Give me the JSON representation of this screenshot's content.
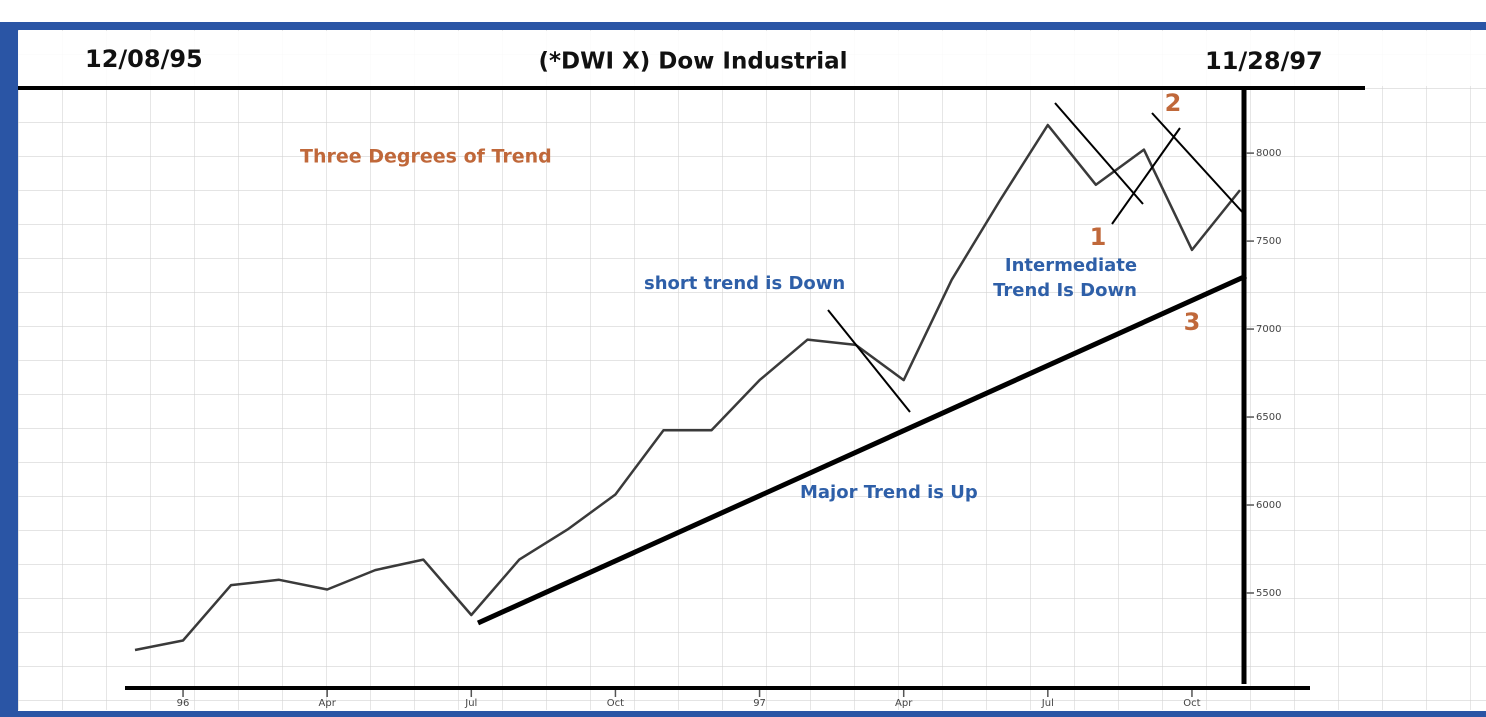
{
  "chart_data": {
    "type": "line",
    "title": "(*DWI X) Dow Industrial",
    "start_date": "12/08/95",
    "end_date": "11/28/97",
    "x": [
      "1995-12",
      "1996-01",
      "1996-02",
      "1996-03",
      "1996-04",
      "1996-05",
      "1996-06",
      "1996-07",
      "1996-08",
      "1996-09",
      "1996-10",
      "1996-11",
      "1996-12",
      "1997-01",
      "1997-02",
      "1997-03",
      "1997-04",
      "1997-05",
      "1997-06",
      "1997-07",
      "1997-08",
      "1997-09",
      "1997-10",
      "1997-11"
    ],
    "values": [
      5176,
      5230,
      5545,
      5575,
      5520,
      5630,
      5690,
      5375,
      5690,
      5860,
      6060,
      6425,
      6425,
      6710,
      6940,
      6910,
      6710,
      7280,
      7730,
      8160,
      7820,
      8020,
      7450,
      7790
    ],
    "color": "#3a3a3a",
    "xlim": [
      "1995-12",
      "1997-11"
    ],
    "xticks": [
      {
        "value": "1996-01",
        "label": "96"
      },
      {
        "value": "1996-04",
        "label": "Apr"
      },
      {
        "value": "1996-07",
        "label": "Jul"
      },
      {
        "value": "1996-10",
        "label": "Oct"
      },
      {
        "value": "1997-01",
        "label": "97"
      },
      {
        "value": "1997-04",
        "label": "Apr"
      },
      {
        "value": "1997-07",
        "label": "Jul"
      },
      {
        "value": "1997-10",
        "label": "Oct"
      }
    ],
    "ylim": [
      4960,
      8370
    ],
    "yticks": [
      5500,
      6000,
      6500,
      7000,
      7500,
      8000
    ],
    "annotations": {
      "heading": "Three Degrees of Trend",
      "short": "short trend is Down",
      "intermediate": [
        "Intermediate",
        "Trend Is Down"
      ],
      "major": "Major Trend is Up",
      "points": [
        "1",
        "2",
        "3"
      ]
    }
  }
}
